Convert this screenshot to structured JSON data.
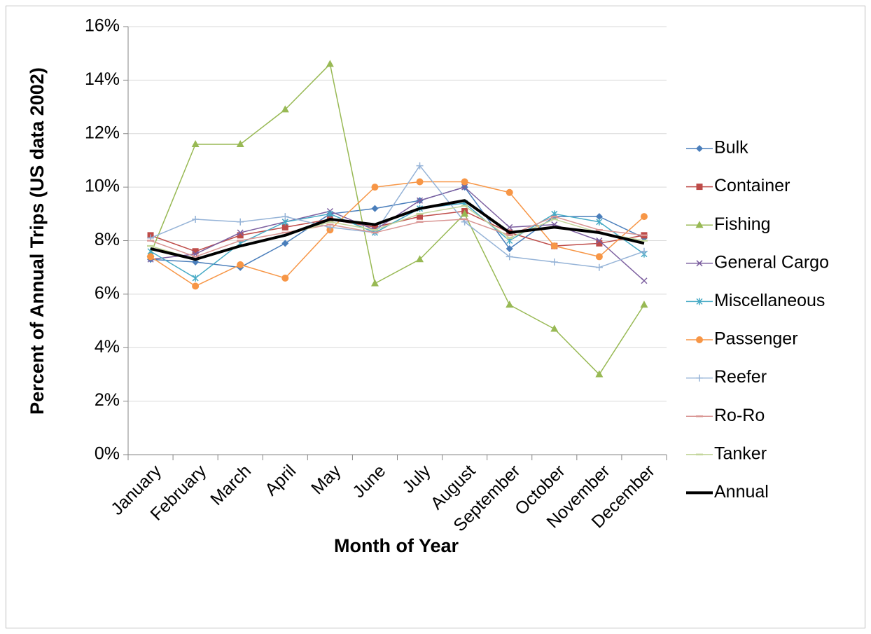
{
  "chart_data": {
    "type": "line",
    "x_label": "Month of Year",
    "y_label": "Percent of Annual Trips (US data 2002)",
    "categories": [
      "January",
      "February",
      "March",
      "April",
      "May",
      "June",
      "July",
      "August",
      "September",
      "October",
      "November",
      "December"
    ],
    "ylim": [
      0,
      16
    ],
    "yticks": [
      {
        "value": 0,
        "label": "0%"
      },
      {
        "value": 2,
        "label": "2%"
      },
      {
        "value": 4,
        "label": "4%"
      },
      {
        "value": 6,
        "label": "6%"
      },
      {
        "value": 8,
        "label": "8%"
      },
      {
        "value": 10,
        "label": "10%"
      },
      {
        "value": 12,
        "label": "12%"
      },
      {
        "value": 14,
        "label": "14%"
      },
      {
        "value": 16,
        "label": "16%"
      }
    ],
    "grid": true,
    "legend": "right",
    "series": [
      {
        "name": "Bulk",
        "color": "#4a7ebb",
        "marker": "diamond",
        "values": [
          7.3,
          7.2,
          7.0,
          7.9,
          9.0,
          9.2,
          9.5,
          10.0,
          7.7,
          8.9,
          8.9,
          8.1
        ]
      },
      {
        "name": "Container",
        "color": "#be4b48",
        "marker": "square",
        "values": [
          8.2,
          7.6,
          8.2,
          8.5,
          8.8,
          8.5,
          8.9,
          9.1,
          8.3,
          7.8,
          7.9,
          8.2
        ]
      },
      {
        "name": "Fishing",
        "color": "#98b954",
        "marker": "triangle",
        "values": [
          7.5,
          11.6,
          11.6,
          12.9,
          14.6,
          6.4,
          7.3,
          9.0,
          5.6,
          4.7,
          3.0,
          5.6
        ]
      },
      {
        "name": "General Cargo",
        "color": "#7d60a0",
        "marker": "x",
        "values": [
          7.3,
          7.5,
          8.3,
          8.7,
          9.1,
          8.4,
          9.5,
          10.0,
          8.5,
          8.6,
          8.0,
          6.5
        ]
      },
      {
        "name": "Miscellaneous",
        "color": "#46aac5",
        "marker": "star",
        "values": [
          7.6,
          6.6,
          7.9,
          8.7,
          9.0,
          8.3,
          9.2,
          9.4,
          8.0,
          9.0,
          8.7,
          7.5
        ]
      },
      {
        "name": "Passenger",
        "color": "#f79646",
        "marker": "circle",
        "values": [
          7.4,
          6.3,
          7.1,
          6.6,
          8.4,
          10.0,
          10.2,
          10.2,
          9.8,
          7.8,
          7.4,
          8.9
        ]
      },
      {
        "name": "Reefer",
        "color": "#95b3d7",
        "marker": "plus",
        "values": [
          8.1,
          8.8,
          8.7,
          8.9,
          8.5,
          8.3,
          10.8,
          8.7,
          7.4,
          7.2,
          7.0,
          7.6
        ]
      },
      {
        "name": "Ro-Ro",
        "color": "#d99694",
        "marker": "dash",
        "values": [
          8.0,
          7.4,
          8.0,
          8.3,
          8.6,
          8.3,
          8.7,
          8.8,
          8.2,
          8.9,
          8.4,
          8.2
        ]
      },
      {
        "name": "Tanker",
        "color": "#c3d69b",
        "marker": "dash",
        "values": [
          7.8,
          7.3,
          7.8,
          8.2,
          8.7,
          8.4,
          9.0,
          9.3,
          8.1,
          8.8,
          8.3,
          8.0
        ]
      },
      {
        "name": "Annual",
        "color": "#000000",
        "marker": "none",
        "width": 4,
        "values": [
          7.7,
          7.3,
          7.8,
          8.2,
          8.8,
          8.6,
          9.2,
          9.5,
          8.3,
          8.5,
          8.3,
          7.9
        ]
      }
    ]
  }
}
